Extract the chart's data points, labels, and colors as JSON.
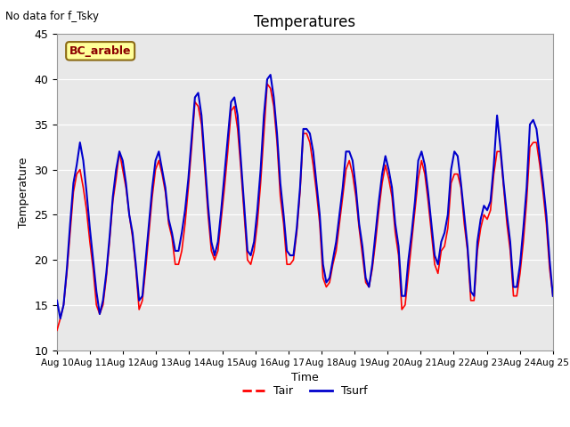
{
  "title": "Temperatures",
  "xlabel": "Time",
  "ylabel": "Temperature",
  "annotation": "No data for f_Tsky",
  "location_label": "BC_arable",
  "ylim": [
    10,
    45
  ],
  "tair_color": "#FF0000",
  "tsurf_color": "#0000CC",
  "legend_labels": [
    "Tair",
    "Tsurf"
  ],
  "background_color": "#E8E8E8",
  "x_tick_labels": [
    "Aug 10",
    "Aug 11",
    "Aug 12",
    "Aug 13",
    "Aug 14",
    "Aug 15",
    "Aug 16",
    "Aug 17",
    "Aug 18",
    "Aug 19",
    "Aug 20",
    "Aug 21",
    "Aug 22",
    "Aug 23",
    "Aug 24",
    "Aug 25"
  ],
  "tair_data": [
    12.2,
    13.5,
    15.0,
    18.5,
    23.0,
    27.5,
    29.5,
    30.0,
    28.0,
    25.5,
    22.0,
    19.0,
    15.0,
    14.0,
    15.0,
    18.0,
    22.0,
    26.5,
    29.0,
    32.0,
    30.0,
    28.0,
    25.0,
    22.5,
    19.0,
    14.5,
    15.5,
    19.0,
    23.0,
    27.0,
    30.0,
    31.0,
    29.5,
    27.5,
    24.0,
    22.5,
    19.5,
    19.5,
    21.0,
    24.0,
    28.0,
    32.5,
    37.5,
    37.0,
    35.0,
    30.0,
    25.0,
    21.0,
    20.0,
    21.0,
    24.5,
    28.0,
    32.0,
    36.5,
    37.0,
    34.5,
    30.0,
    25.0,
    20.0,
    19.5,
    21.0,
    24.0,
    28.5,
    34.0,
    39.5,
    39.0,
    37.0,
    33.0,
    27.0,
    24.0,
    19.5,
    19.5,
    20.0,
    23.0,
    27.5,
    34.0,
    34.0,
    33.0,
    30.5,
    27.5,
    24.0,
    18.0,
    17.0,
    17.5,
    19.5,
    21.0,
    24.0,
    27.0,
    30.0,
    31.0,
    29.5,
    27.0,
    23.5,
    20.5,
    17.5,
    17.0,
    19.0,
    22.0,
    25.5,
    28.5,
    30.5,
    29.0,
    27.0,
    23.0,
    20.5,
    14.5,
    15.0,
    18.5,
    22.0,
    25.5,
    29.0,
    31.0,
    29.5,
    26.5,
    23.0,
    19.5,
    18.5,
    21.0,
    21.5,
    23.5,
    28.5,
    29.5,
    29.5,
    28.0,
    24.0,
    21.0,
    15.5,
    15.5,
    21.0,
    23.5,
    25.0,
    24.5,
    25.5,
    29.5,
    32.0,
    32.0,
    28.0,
    24.0,
    21.0,
    16.0,
    16.0,
    18.5,
    22.0,
    26.5,
    32.5,
    33.0,
    33.0,
    30.5,
    27.5,
    24.0,
    19.0,
    16.0
  ],
  "tsurf_data": [
    15.5,
    13.5,
    15.0,
    19.0,
    24.0,
    28.5,
    30.5,
    33.0,
    31.0,
    27.5,
    23.5,
    20.0,
    16.5,
    14.0,
    15.5,
    18.5,
    22.5,
    27.0,
    30.0,
    32.0,
    31.0,
    28.5,
    25.0,
    23.0,
    19.5,
    15.5,
    16.0,
    20.0,
    24.0,
    28.0,
    31.0,
    32.0,
    30.0,
    28.0,
    24.5,
    23.0,
    21.0,
    21.0,
    23.0,
    25.5,
    29.0,
    33.5,
    38.0,
    38.5,
    36.0,
    31.0,
    26.0,
    22.0,
    20.5,
    22.0,
    25.5,
    29.5,
    33.5,
    37.5,
    38.0,
    36.0,
    31.0,
    26.0,
    21.0,
    20.5,
    22.0,
    25.5,
    30.0,
    36.0,
    40.0,
    40.5,
    38.0,
    34.0,
    28.5,
    25.0,
    21.0,
    20.5,
    20.5,
    23.5,
    28.0,
    34.5,
    34.5,
    34.0,
    32.0,
    28.5,
    25.0,
    19.5,
    17.5,
    18.0,
    20.0,
    22.0,
    25.0,
    28.0,
    32.0,
    32.0,
    31.0,
    28.0,
    24.0,
    21.5,
    18.0,
    17.0,
    19.5,
    23.0,
    26.5,
    29.5,
    31.5,
    30.0,
    28.0,
    24.0,
    21.5,
    16.0,
    16.0,
    20.0,
    23.0,
    26.5,
    31.0,
    32.0,
    30.5,
    27.5,
    24.0,
    20.5,
    19.5,
    22.0,
    23.0,
    25.0,
    30.0,
    32.0,
    31.5,
    28.5,
    25.0,
    21.5,
    16.5,
    16.0,
    22.0,
    24.5,
    26.0,
    25.5,
    26.5,
    30.5,
    36.0,
    32.5,
    28.5,
    25.0,
    22.0,
    17.0,
    17.0,
    19.5,
    23.5,
    28.0,
    35.0,
    35.5,
    34.5,
    31.5,
    28.5,
    25.0,
    20.0,
    16.0
  ]
}
